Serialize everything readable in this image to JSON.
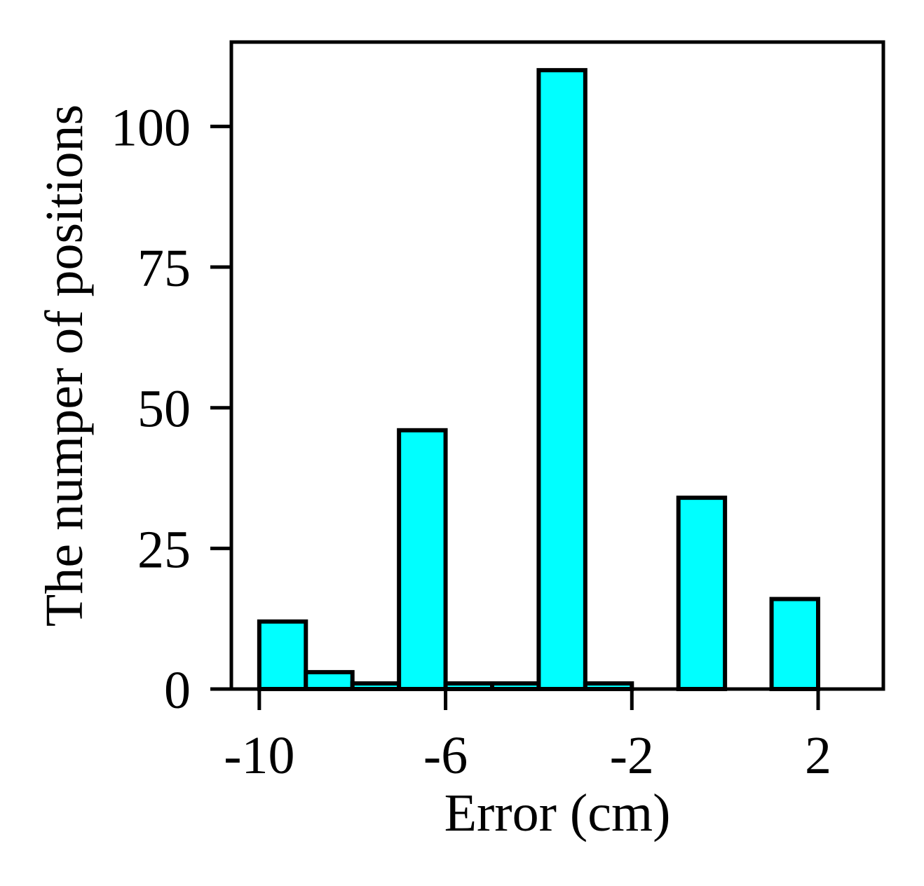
{
  "chart_data": {
    "type": "bar",
    "title": "",
    "xlabel": "Error (cm)",
    "ylabel": "The numper of positions",
    "x_ticks": [
      "-10",
      "-6",
      "-2",
      "2"
    ],
    "y_ticks": [
      "0",
      "25",
      "50",
      "75",
      "100"
    ],
    "xlim": [
      -10.6,
      3.4
    ],
    "ylim": [
      0,
      115
    ],
    "grid": false,
    "bin_width": 1,
    "bin_starts": [
      -10,
      -9,
      -8,
      -7,
      -6,
      -5,
      -4,
      -3,
      -2,
      -1,
      0,
      1,
      2
    ],
    "values": [
      12,
      3,
      1,
      46,
      1,
      1,
      110,
      1,
      0,
      34,
      0,
      16,
      0
    ],
    "bar_color": "#00ffff",
    "edge_color": "#000000"
  }
}
